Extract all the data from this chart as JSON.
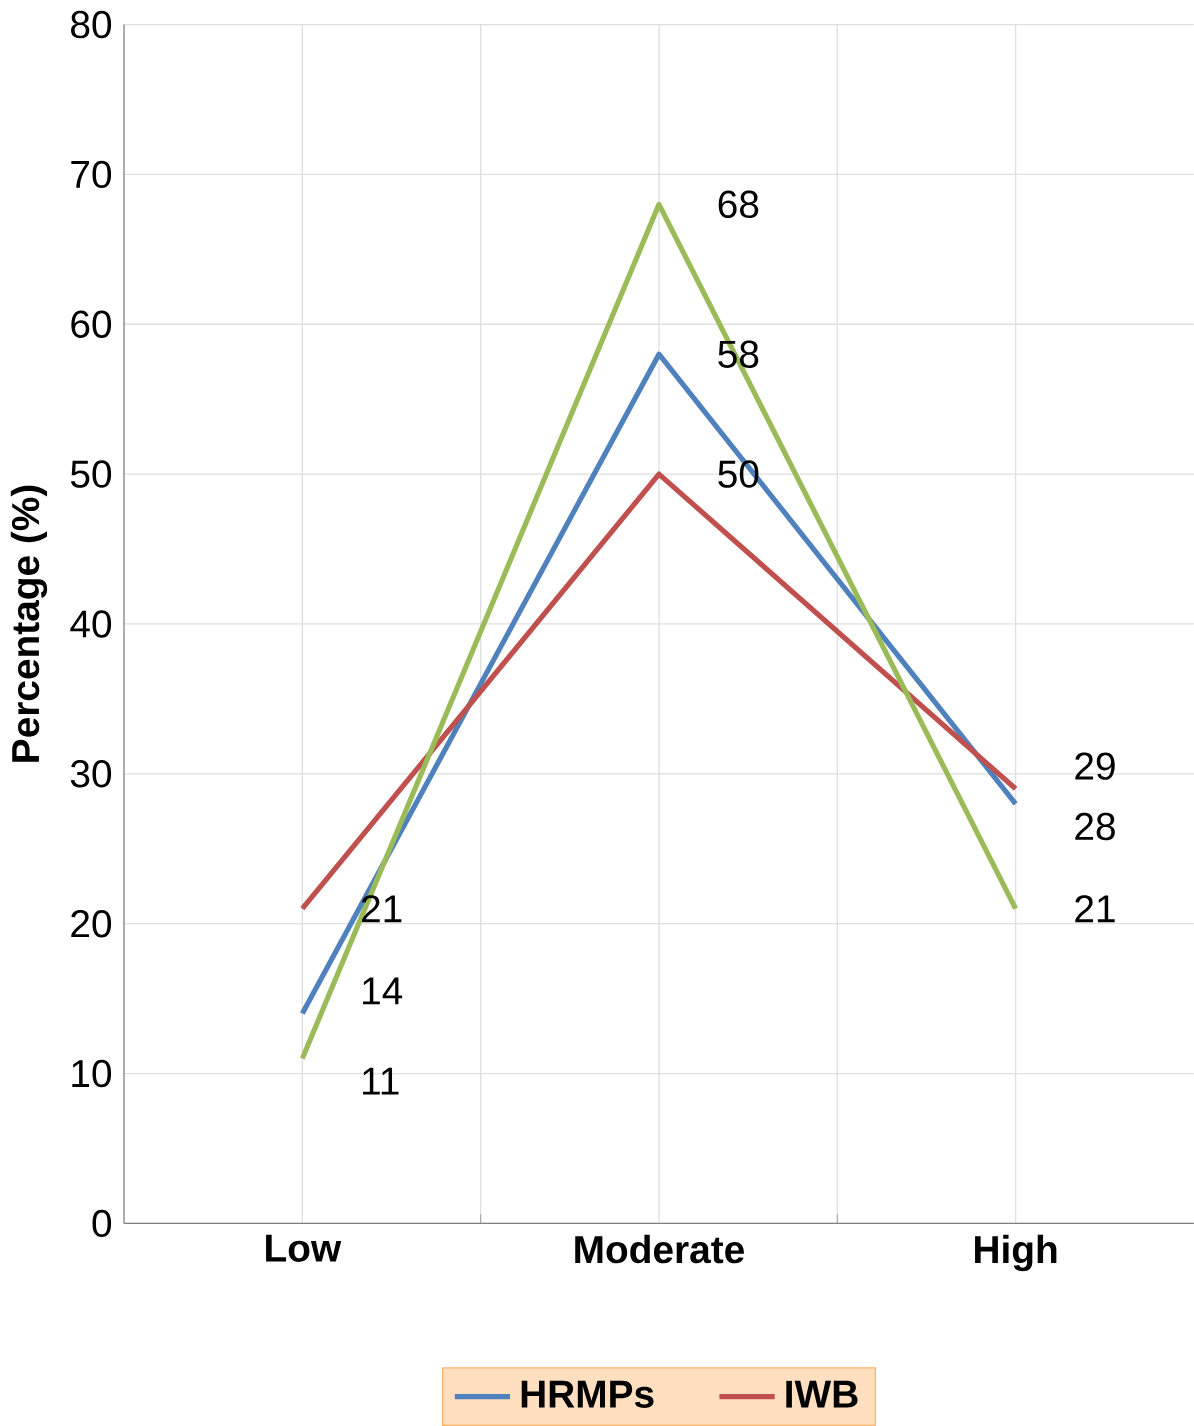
{
  "chart_data": {
    "type": "line",
    "ylabel": "Percentage (%)",
    "categories": [
      "Low",
      "Moderate",
      "High"
    ],
    "series": [
      {
        "name": "HRMPs",
        "color": "#4f81bd",
        "values": [
          14,
          58,
          28
        ]
      },
      {
        "name": "IWB",
        "color": "#c0504d",
        "values": [
          21,
          50,
          29
        ]
      },
      {
        "color": "#9bbb59",
        "values": [
          11,
          68,
          21
        ]
      }
    ],
    "ylim": [
      0,
      80
    ],
    "yticks": [
      0,
      10,
      20,
      30,
      40,
      50,
      60,
      70,
      80
    ],
    "grid": true,
    "legend": "bottom",
    "data_labels": true,
    "marker": "none",
    "line_style": "solid"
  }
}
